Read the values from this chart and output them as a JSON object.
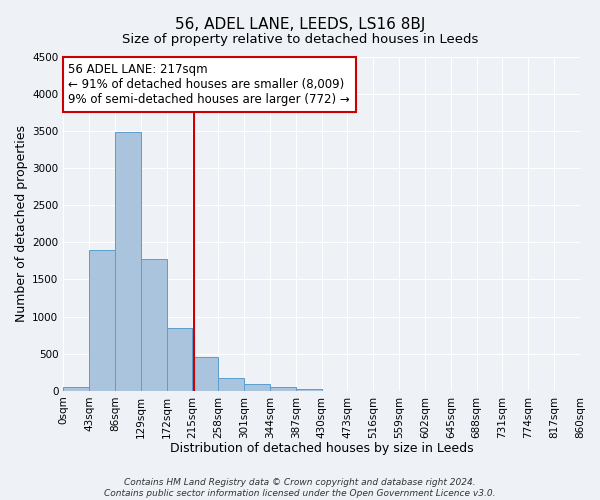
{
  "title": "56, ADEL LANE, LEEDS, LS16 8BJ",
  "subtitle": "Size of property relative to detached houses in Leeds",
  "xlabel": "Distribution of detached houses by size in Leeds",
  "ylabel": "Number of detached properties",
  "bin_edges": [
    0,
    43,
    86,
    129,
    172,
    215,
    258,
    301,
    344,
    387,
    430,
    473,
    516,
    559,
    602,
    645,
    688,
    731,
    774,
    817,
    860
  ],
  "bin_labels": [
    "0sqm",
    "43sqm",
    "86sqm",
    "129sqm",
    "172sqm",
    "215sqm",
    "258sqm",
    "301sqm",
    "344sqm",
    "387sqm",
    "430sqm",
    "473sqm",
    "516sqm",
    "559sqm",
    "602sqm",
    "645sqm",
    "688sqm",
    "731sqm",
    "774sqm",
    "817sqm",
    "860sqm"
  ],
  "bar_heights": [
    50,
    1900,
    3480,
    1770,
    840,
    460,
    175,
    95,
    55,
    30,
    0,
    0,
    0,
    0,
    0,
    0,
    0,
    0,
    0,
    0
  ],
  "bar_color": "#aac4de",
  "bar_edge_color": "#5a9ecf",
  "property_value": 217,
  "vline_color": "#cc0000",
  "annotation_line1": "56 ADEL LANE: 217sqm",
  "annotation_line2": "← 91% of detached houses are smaller (8,009)",
  "annotation_line3": "9% of semi-detached houses are larger (772) →",
  "annotation_box_color": "#ffffff",
  "annotation_box_edge_color": "#cc0000",
  "ylim": [
    0,
    4500
  ],
  "yticks": [
    0,
    500,
    1000,
    1500,
    2000,
    2500,
    3000,
    3500,
    4000,
    4500
  ],
  "footer_line1": "Contains HM Land Registry data © Crown copyright and database right 2024.",
  "footer_line2": "Contains public sector information licensed under the Open Government Licence v3.0.",
  "title_fontsize": 11,
  "subtitle_fontsize": 9.5,
  "axis_label_fontsize": 9,
  "tick_fontsize": 7.5,
  "annotation_fontsize": 8.5,
  "footer_fontsize": 6.5,
  "background_color": "#eef2f7",
  "grid_color": "#ffffff"
}
